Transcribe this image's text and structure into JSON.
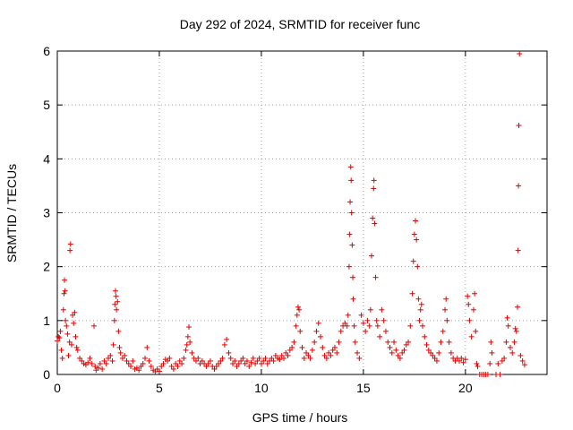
{
  "chart_data": {
    "type": "scatter",
    "title": "Day 292 of 2024, SRMTID for receiver func",
    "xlabel": "GPS time / hours",
    "ylabel": "SRMTID / TECUs",
    "xlim": [
      0,
      24
    ],
    "ylim": [
      0,
      6
    ],
    "xticks": [
      0,
      5,
      10,
      15,
      20
    ],
    "xtick_labels": [
      "0",
      "5",
      "10",
      "15",
      "20"
    ],
    "yticks": [
      0,
      1,
      2,
      3,
      4,
      5,
      6
    ],
    "ytick_labels": [
      "0",
      "1",
      "2",
      "3",
      "4",
      "5",
      "6"
    ],
    "grid": true,
    "marker": "plus",
    "color": "#e00000",
    "series": [
      {
        "name": "SRMTID",
        "points": [
          [
            0.0,
            0.62
          ],
          [
            0.05,
            0.7
          ],
          [
            0.1,
            0.68
          ],
          [
            0.15,
            0.8
          ],
          [
            0.2,
            0.45
          ],
          [
            0.25,
            0.3
          ],
          [
            0.3,
            1.2
          ],
          [
            0.33,
            1.5
          ],
          [
            0.35,
            1.75
          ],
          [
            0.38,
            1.55
          ],
          [
            0.4,
            1.0
          ],
          [
            0.45,
            0.9
          ],
          [
            0.5,
            0.75
          ],
          [
            0.55,
            0.35
          ],
          [
            0.6,
            0.6
          ],
          [
            0.62,
            2.3
          ],
          [
            0.65,
            2.42
          ],
          [
            0.7,
            0.55
          ],
          [
            0.75,
            1.1
          ],
          [
            0.8,
            0.95
          ],
          [
            0.85,
            1.15
          ],
          [
            0.9,
            0.7
          ],
          [
            0.95,
            0.5
          ],
          [
            1.0,
            0.45
          ],
          [
            1.1,
            0.3
          ],
          [
            1.2,
            0.25
          ],
          [
            1.3,
            0.2
          ],
          [
            1.4,
            0.18
          ],
          [
            1.5,
            0.22
          ],
          [
            1.6,
            0.3
          ],
          [
            1.7,
            0.2
          ],
          [
            1.8,
            0.9
          ],
          [
            1.85,
            0.15
          ],
          [
            1.9,
            0.08
          ],
          [
            2.0,
            0.12
          ],
          [
            2.1,
            0.2
          ],
          [
            2.2,
            0.1
          ],
          [
            2.3,
            0.25
          ],
          [
            2.4,
            0.2
          ],
          [
            2.5,
            0.3
          ],
          [
            2.6,
            0.35
          ],
          [
            2.7,
            0.25
          ],
          [
            2.75,
            0.55
          ],
          [
            2.8,
            1.0
          ],
          [
            2.82,
            1.3
          ],
          [
            2.85,
            1.55
          ],
          [
            2.88,
            1.45
          ],
          [
            2.9,
            1.2
          ],
          [
            2.95,
            1.35
          ],
          [
            3.0,
            0.8
          ],
          [
            3.05,
            0.5
          ],
          [
            3.1,
            0.4
          ],
          [
            3.2,
            0.3
          ],
          [
            3.3,
            0.35
          ],
          [
            3.4,
            0.25
          ],
          [
            3.5,
            0.2
          ],
          [
            3.6,
            0.15
          ],
          [
            3.7,
            0.25
          ],
          [
            3.8,
            0.1
          ],
          [
            3.9,
            0.12
          ],
          [
            4.0,
            0.08
          ],
          [
            4.1,
            0.15
          ],
          [
            4.2,
            0.2
          ],
          [
            4.3,
            0.3
          ],
          [
            4.4,
            0.5
          ],
          [
            4.5,
            0.25
          ],
          [
            4.6,
            0.15
          ],
          [
            4.7,
            0.08
          ],
          [
            4.8,
            0.05
          ],
          [
            4.9,
            0.1
          ],
          [
            5.0,
            0.06
          ],
          [
            5.1,
            0.15
          ],
          [
            5.2,
            0.2
          ],
          [
            5.3,
            0.28
          ],
          [
            5.4,
            0.25
          ],
          [
            5.5,
            0.3
          ],
          [
            5.6,
            0.15
          ],
          [
            5.7,
            0.1
          ],
          [
            5.8,
            0.2
          ],
          [
            5.9,
            0.15
          ],
          [
            6.0,
            0.25
          ],
          [
            6.1,
            0.2
          ],
          [
            6.2,
            0.3
          ],
          [
            6.3,
            0.45
          ],
          [
            6.35,
            0.55
          ],
          [
            6.4,
            0.7
          ],
          [
            6.45,
            0.88
          ],
          [
            6.5,
            0.6
          ],
          [
            6.6,
            0.4
          ],
          [
            6.7,
            0.3
          ],
          [
            6.8,
            0.25
          ],
          [
            6.9,
            0.3
          ],
          [
            7.0,
            0.2
          ],
          [
            7.1,
            0.25
          ],
          [
            7.2,
            0.2
          ],
          [
            7.3,
            0.15
          ],
          [
            7.4,
            0.2
          ],
          [
            7.5,
            0.25
          ],
          [
            7.6,
            0.15
          ],
          [
            7.7,
            0.1
          ],
          [
            7.8,
            0.15
          ],
          [
            7.9,
            0.2
          ],
          [
            8.0,
            0.25
          ],
          [
            8.1,
            0.3
          ],
          [
            8.2,
            0.55
          ],
          [
            8.3,
            0.65
          ],
          [
            8.4,
            0.4
          ],
          [
            8.5,
            0.3
          ],
          [
            8.6,
            0.2
          ],
          [
            8.7,
            0.25
          ],
          [
            8.8,
            0.15
          ],
          [
            8.9,
            0.2
          ],
          [
            9.0,
            0.25
          ],
          [
            9.1,
            0.3
          ],
          [
            9.2,
            0.2
          ],
          [
            9.3,
            0.25
          ],
          [
            9.4,
            0.15
          ],
          [
            9.5,
            0.22
          ],
          [
            9.6,
            0.3
          ],
          [
            9.7,
            0.2
          ],
          [
            9.8,
            0.25
          ],
          [
            9.9,
            0.3
          ],
          [
            10.0,
            0.2
          ],
          [
            10.1,
            0.25
          ],
          [
            10.2,
            0.3
          ],
          [
            10.3,
            0.2
          ],
          [
            10.4,
            0.25
          ],
          [
            10.5,
            0.3
          ],
          [
            10.6,
            0.25
          ],
          [
            10.7,
            0.35
          ],
          [
            10.8,
            0.3
          ],
          [
            10.9,
            0.28
          ],
          [
            11.0,
            0.35
          ],
          [
            11.1,
            0.3
          ],
          [
            11.2,
            0.4
          ],
          [
            11.3,
            0.35
          ],
          [
            11.4,
            0.45
          ],
          [
            11.5,
            0.5
          ],
          [
            11.6,
            0.6
          ],
          [
            11.7,
            0.9
          ],
          [
            11.75,
            1.1
          ],
          [
            11.8,
            1.25
          ],
          [
            11.85,
            1.2
          ],
          [
            11.9,
            0.8
          ],
          [
            12.0,
            0.5
          ],
          [
            12.1,
            0.3
          ],
          [
            12.2,
            0.4
          ],
          [
            12.3,
            0.35
          ],
          [
            12.4,
            0.3
          ],
          [
            12.5,
            0.45
          ],
          [
            12.6,
            0.6
          ],
          [
            12.7,
            0.8
          ],
          [
            12.8,
            0.95
          ],
          [
            12.9,
            0.7
          ],
          [
            13.0,
            0.5
          ],
          [
            13.1,
            0.35
          ],
          [
            13.2,
            0.3
          ],
          [
            13.3,
            0.4
          ],
          [
            13.4,
            0.35
          ],
          [
            13.5,
            0.45
          ],
          [
            13.6,
            0.5
          ],
          [
            13.7,
            0.4
          ],
          [
            13.8,
            0.6
          ],
          [
            13.9,
            0.8
          ],
          [
            14.0,
            0.9
          ],
          [
            14.1,
            0.95
          ],
          [
            14.2,
            0.9
          ],
          [
            14.25,
            1.1
          ],
          [
            14.3,
            2.0
          ],
          [
            14.32,
            2.6
          ],
          [
            14.35,
            3.2
          ],
          [
            14.38,
            3.85
          ],
          [
            14.4,
            3.6
          ],
          [
            14.42,
            3.0
          ],
          [
            14.45,
            2.4
          ],
          [
            14.48,
            1.8
          ],
          [
            14.5,
            1.4
          ],
          [
            14.55,
            0.9
          ],
          [
            14.6,
            0.6
          ],
          [
            14.7,
            0.4
          ],
          [
            14.8,
            0.3
          ],
          [
            14.9,
            1.1
          ],
          [
            15.0,
            0.95
          ],
          [
            15.1,
            0.8
          ],
          [
            15.2,
            1.0
          ],
          [
            15.3,
            0.9
          ],
          [
            15.35,
            1.2
          ],
          [
            15.4,
            2.2
          ],
          [
            15.45,
            2.9
          ],
          [
            15.5,
            3.45
          ],
          [
            15.52,
            3.6
          ],
          [
            15.55,
            2.8
          ],
          [
            15.6,
            1.8
          ],
          [
            15.65,
            1.0
          ],
          [
            15.7,
            0.9
          ],
          [
            15.8,
            0.7
          ],
          [
            15.9,
            1.2
          ],
          [
            16.0,
            1.0
          ],
          [
            16.1,
            0.8
          ],
          [
            16.2,
            0.6
          ],
          [
            16.3,
            0.5
          ],
          [
            16.4,
            0.4
          ],
          [
            16.5,
            0.6
          ],
          [
            16.6,
            0.45
          ],
          [
            16.7,
            0.35
          ],
          [
            16.8,
            0.3
          ],
          [
            16.9,
            0.4
          ],
          [
            17.0,
            0.45
          ],
          [
            17.1,
            0.55
          ],
          [
            17.2,
            0.6
          ],
          [
            17.3,
            0.9
          ],
          [
            17.4,
            1.5
          ],
          [
            17.45,
            2.1
          ],
          [
            17.5,
            2.6
          ],
          [
            17.55,
            2.85
          ],
          [
            17.6,
            2.5
          ],
          [
            17.65,
            2.0
          ],
          [
            17.7,
            1.4
          ],
          [
            17.75,
            1.0
          ],
          [
            17.8,
            1.2
          ],
          [
            17.85,
            1.3
          ],
          [
            17.9,
            0.9
          ],
          [
            18.0,
            0.7
          ],
          [
            18.1,
            0.55
          ],
          [
            18.2,
            0.45
          ],
          [
            18.3,
            0.4
          ],
          [
            18.4,
            0.35
          ],
          [
            18.5,
            0.3
          ],
          [
            18.6,
            0.25
          ],
          [
            18.7,
            0.4
          ],
          [
            18.8,
            0.6
          ],
          [
            18.9,
            0.8
          ],
          [
            19.0,
            1.2
          ],
          [
            19.05,
            1.4
          ],
          [
            19.1,
            1.0
          ],
          [
            19.2,
            0.6
          ],
          [
            19.3,
            0.4
          ],
          [
            19.4,
            0.3
          ],
          [
            19.5,
            0.25
          ],
          [
            19.6,
            0.3
          ],
          [
            19.7,
            0.25
          ],
          [
            19.8,
            0.3
          ],
          [
            19.9,
            0.22
          ],
          [
            20.0,
            0.28
          ],
          [
            20.1,
            1.45
          ],
          [
            20.15,
            1.3
          ],
          [
            20.2,
            1.0
          ],
          [
            20.3,
            0.7
          ],
          [
            20.4,
            1.2
          ],
          [
            20.45,
            1.5
          ],
          [
            20.5,
            0.8
          ],
          [
            20.55,
            0.2
          ],
          [
            20.6,
            0.15
          ],
          [
            20.7,
            0.0
          ],
          [
            20.8,
            0.0
          ],
          [
            20.9,
            0.0
          ],
          [
            21.0,
            0.0
          ],
          [
            21.1,
            0.0
          ],
          [
            21.2,
            0.2
          ],
          [
            21.25,
            0.6
          ],
          [
            21.3,
            0.4
          ],
          [
            21.5,
            0.0
          ],
          [
            21.6,
            0.2
          ],
          [
            21.7,
            0.0
          ],
          [
            21.8,
            0.25
          ],
          [
            21.9,
            0.3
          ],
          [
            22.0,
            0.6
          ],
          [
            22.05,
            1.05
          ],
          [
            22.1,
            0.9
          ],
          [
            22.2,
            0.5
          ],
          [
            22.3,
            0.4
          ],
          [
            22.4,
            0.6
          ],
          [
            22.45,
            0.85
          ],
          [
            22.5,
            0.8
          ],
          [
            22.55,
            1.25
          ],
          [
            22.58,
            2.3
          ],
          [
            22.6,
            3.5
          ],
          [
            22.62,
            4.62
          ],
          [
            22.65,
            5.95
          ],
          [
            22.7,
            0.35
          ],
          [
            22.8,
            0.25
          ],
          [
            22.9,
            0.18
          ]
        ]
      }
    ]
  }
}
